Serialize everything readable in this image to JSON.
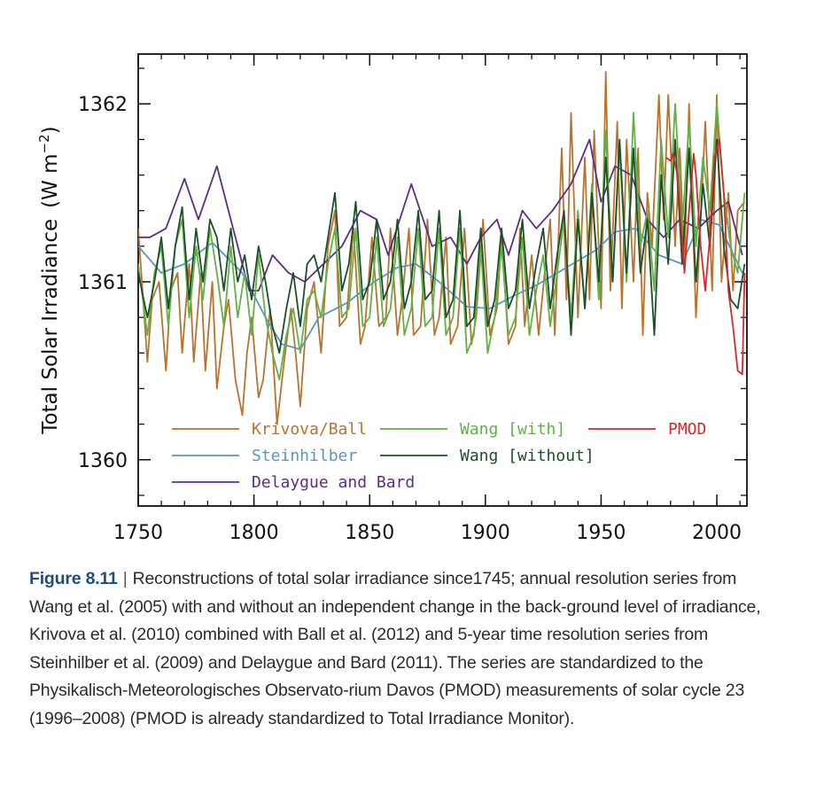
{
  "chart_data": {
    "type": "line",
    "xlabel": "",
    "ylabel": "Total Solar Irradiance",
    "ylabel_unit_base": "(W m",
    "ylabel_unit_exp": "−2",
    "ylabel_unit_close": ")",
    "xlim": [
      1750,
      2013
    ],
    "ylim": [
      1359.74,
      1362.28
    ],
    "x_ticks": [
      "1750",
      "1800",
      "1850",
      "1900",
      "1950",
      "2000"
    ],
    "y_ticks": [
      "1360",
      "1361",
      "1362"
    ],
    "grid": false,
    "legend_position": "bottom-left inside plot",
    "series": [
      {
        "name": "Krivova/Ball",
        "color": "#b8732f",
        "x": [
          1750,
          1754,
          1756,
          1759,
          1762,
          1764,
          1767,
          1769,
          1772,
          1774,
          1777,
          1779,
          1782,
          1784,
          1787,
          1789,
          1792,
          1795,
          1797,
          1799,
          1802,
          1804,
          1807,
          1810,
          1813,
          1816,
          1818,
          1820,
          1823,
          1826,
          1829,
          1832,
          1835,
          1837,
          1840,
          1843,
          1846,
          1848,
          1851,
          1854,
          1857,
          1859,
          1862,
          1864,
          1867,
          1869,
          1872,
          1875,
          1878,
          1880,
          1883,
          1885,
          1888,
          1891,
          1894,
          1896,
          1899,
          1902,
          1905,
          1907,
          1910,
          1913,
          1915,
          1917,
          1920,
          1923,
          1926,
          1928,
          1930,
          1933,
          1935,
          1937,
          1940,
          1943,
          1945,
          1947,
          1950,
          1952,
          1954,
          1957,
          1959,
          1961,
          1964,
          1966,
          1968,
          1970,
          1972,
          1975,
          1977,
          1979,
          1982,
          1984,
          1986,
          1988,
          1991,
          1993,
          1995,
          1998,
          2000,
          2002,
          2005,
          2007,
          2009,
          2012
        ],
        "values": [
          1361.3,
          1360.55,
          1360.9,
          1361.0,
          1360.5,
          1360.95,
          1361.05,
          1360.6,
          1361.1,
          1360.55,
          1361.05,
          1360.5,
          1361.0,
          1360.4,
          1360.75,
          1360.9,
          1360.45,
          1360.25,
          1360.6,
          1360.8,
          1360.35,
          1360.45,
          1360.85,
          1360.2,
          1360.55,
          1360.85,
          1360.6,
          1360.3,
          1360.85,
          1361.0,
          1360.6,
          1361.2,
          1361.4,
          1360.75,
          1360.8,
          1361.3,
          1360.65,
          1360.75,
          1361.25,
          1360.75,
          1360.8,
          1361.3,
          1360.7,
          1360.9,
          1361.3,
          1360.7,
          1360.75,
          1361.35,
          1360.7,
          1360.8,
          1361.25,
          1360.65,
          1360.75,
          1361.3,
          1360.65,
          1360.8,
          1361.35,
          1360.7,
          1360.85,
          1361.25,
          1360.65,
          1360.75,
          1361.3,
          1360.75,
          1361.15,
          1360.7,
          1361.1,
          1361.35,
          1360.7,
          1361.75,
          1360.9,
          1361.95,
          1360.8,
          1361.7,
          1360.9,
          1361.85,
          1360.85,
          1362.18,
          1360.95,
          1361.9,
          1360.85,
          1361.8,
          1361.0,
          1361.75,
          1360.7,
          1361.5,
          1361.2,
          1362.05,
          1361.35,
          1362.05,
          1361.2,
          1361.75,
          1361.1,
          1362.0,
          1360.8,
          1361.35,
          1361.9,
          1360.95,
          1362.05,
          1361.0,
          1361.5,
          1360.95,
          1361.4,
          1361.45
        ]
      },
      {
        "name": "Steinhilber",
        "color": "#5a95c3",
        "x": [
          1750,
          1760,
          1770,
          1782,
          1795,
          1805,
          1812,
          1820,
          1828,
          1840,
          1852,
          1862,
          1870,
          1880,
          1892,
          1902,
          1912,
          1922,
          1935,
          1948,
          1956,
          1965,
          1975,
          1985,
          1993,
          2001,
          2011
        ],
        "values": [
          1361.2,
          1361.05,
          1361.1,
          1361.22,
          1361.05,
          1360.8,
          1360.65,
          1360.62,
          1360.8,
          1360.88,
          1361.0,
          1361.08,
          1361.1,
          1361.0,
          1360.86,
          1360.85,
          1360.92,
          1360.98,
          1361.08,
          1361.18,
          1361.28,
          1361.3,
          1361.15,
          1361.1,
          1361.35,
          1361.32,
          1361.05
        ]
      },
      {
        "name": "Delaygue and Bard",
        "color": "#5c2d84",
        "x": [
          1750,
          1755,
          1762,
          1770,
          1776,
          1784,
          1791,
          1795,
          1798,
          1802,
          1808,
          1815,
          1822,
          1830,
          1838,
          1846,
          1853,
          1858,
          1868,
          1877,
          1885,
          1892,
          1898,
          1905,
          1910,
          1916,
          1922,
          1929,
          1937,
          1945,
          1950,
          1956,
          1963,
          1970,
          1977,
          1984,
          1992,
          2000,
          2005,
          2011
        ],
        "values": [
          1361.25,
          1361.25,
          1361.3,
          1361.58,
          1361.35,
          1361.65,
          1361.3,
          1361.1,
          1360.95,
          1360.95,
          1361.15,
          1361.05,
          1361.0,
          1361.1,
          1361.2,
          1361.4,
          1361.35,
          1361.15,
          1361.55,
          1361.2,
          1361.25,
          1361.1,
          1361.25,
          1361.35,
          1361.15,
          1361.4,
          1361.3,
          1361.4,
          1361.55,
          1361.8,
          1361.45,
          1361.65,
          1361.6,
          1361.35,
          1361.25,
          1361.35,
          1361.3,
          1361.4,
          1361.45,
          1361.15
        ]
      },
      {
        "name": "Wang [with]",
        "color": "#62b145",
        "x": [
          1750,
          1754,
          1757,
          1760,
          1763,
          1766,
          1769,
          1772,
          1775,
          1778,
          1781,
          1784,
          1787,
          1790,
          1793,
          1796,
          1799,
          1802,
          1805,
          1808,
          1811,
          1814,
          1817,
          1820,
          1823,
          1826,
          1829,
          1832,
          1835,
          1838,
          1841,
          1844,
          1847,
          1850,
          1853,
          1856,
          1859,
          1862,
          1865,
          1868,
          1871,
          1874,
          1877,
          1880,
          1883,
          1886,
          1889,
          1892,
          1895,
          1898,
          1901,
          1904,
          1907,
          1910,
          1913,
          1916,
          1919,
          1922,
          1925,
          1928,
          1931,
          1934,
          1937,
          1940,
          1943,
          1946,
          1949,
          1952,
          1955,
          1958,
          1961,
          1964,
          1967,
          1970,
          1973,
          1976,
          1979,
          1982,
          1985,
          1988,
          1991,
          1994,
          1997,
          2000,
          2003,
          2006,
          2009,
          2012
        ],
        "values": [
          1361.1,
          1360.7,
          1361.05,
          1361.2,
          1360.75,
          1361.2,
          1361.35,
          1360.8,
          1361.2,
          1360.9,
          1361.3,
          1361.05,
          1360.75,
          1361.2,
          1360.8,
          1361.05,
          1360.7,
          1361.15,
          1360.8,
          1360.6,
          1360.45,
          1360.7,
          1360.85,
          1360.6,
          1360.9,
          1360.95,
          1360.8,
          1361.1,
          1361.3,
          1360.8,
          1360.85,
          1361.3,
          1360.75,
          1360.8,
          1361.25,
          1360.75,
          1360.85,
          1361.25,
          1360.7,
          1360.85,
          1361.3,
          1360.75,
          1360.8,
          1361.3,
          1360.7,
          1360.8,
          1361.3,
          1360.6,
          1360.7,
          1361.2,
          1360.6,
          1360.8,
          1361.2,
          1360.7,
          1360.8,
          1361.25,
          1360.7,
          1360.95,
          1361.15,
          1360.75,
          1361.05,
          1361.35,
          1360.8,
          1361.4,
          1360.85,
          1361.55,
          1360.9,
          1361.85,
          1361.0,
          1361.75,
          1361.0,
          1361.95,
          1361.2,
          1361.4,
          1360.95,
          1361.8,
          1361.25,
          1362.0,
          1361.3,
          1361.9,
          1361.2,
          1361.7,
          1361.4,
          1362.0,
          1361.5,
          1361.2,
          1361.05,
          1361.5
        ]
      },
      {
        "name": "Wang [without]",
        "color": "#1c4f2a",
        "x": [
          1750,
          1754,
          1757,
          1760,
          1763,
          1766,
          1769,
          1772,
          1775,
          1778,
          1781,
          1784,
          1787,
          1790,
          1793,
          1796,
          1799,
          1802,
          1805,
          1808,
          1811,
          1814,
          1817,
          1820,
          1823,
          1826,
          1829,
          1832,
          1835,
          1838,
          1841,
          1844,
          1847,
          1850,
          1853,
          1856,
          1859,
          1862,
          1865,
          1868,
          1871,
          1874,
          1877,
          1880,
          1883,
          1886,
          1889,
          1892,
          1895,
          1898,
          1901,
          1904,
          1907,
          1910,
          1913,
          1916,
          1919,
          1922,
          1925,
          1928,
          1931,
          1934,
          1937,
          1940,
          1943,
          1946,
          1949,
          1952,
          1955,
          1958,
          1961,
          1964,
          1967,
          1970,
          1973,
          1976,
          1979,
          1982,
          1985,
          1988,
          1991,
          1994,
          1997,
          2000,
          2003,
          2006,
          2009,
          2012
        ],
        "values": [
          1361.05,
          1360.8,
          1361.0,
          1361.25,
          1360.85,
          1361.2,
          1361.42,
          1360.9,
          1361.3,
          1361.0,
          1361.35,
          1361.25,
          1360.95,
          1361.3,
          1361.0,
          1361.15,
          1360.9,
          1361.2,
          1361.0,
          1360.75,
          1360.6,
          1360.85,
          1361.05,
          1360.75,
          1361.1,
          1361.15,
          1361.0,
          1361.25,
          1361.5,
          1360.95,
          1361.1,
          1361.45,
          1360.9,
          1361.0,
          1361.35,
          1360.9,
          1361.0,
          1361.35,
          1360.85,
          1361.0,
          1361.4,
          1360.9,
          1360.95,
          1361.4,
          1360.8,
          1360.9,
          1361.4,
          1360.75,
          1360.8,
          1361.3,
          1360.75,
          1360.9,
          1361.3,
          1360.85,
          1360.95,
          1361.35,
          1360.85,
          1361.1,
          1361.3,
          1360.85,
          1361.15,
          1361.4,
          1360.7,
          1361.35,
          1360.85,
          1361.5,
          1361.0,
          1361.7,
          1361.0,
          1361.8,
          1361.05,
          1361.75,
          1361.05,
          1361.35,
          1360.7,
          1361.6,
          1361.1,
          1361.8,
          1361.1,
          1361.75,
          1361.0,
          1361.55,
          1361.2,
          1361.8,
          1361.2,
          1360.9,
          1360.85,
          1361.1
        ]
      },
      {
        "name": "PMOD",
        "color": "#d6292a",
        "x": [
          1978,
          1980,
          1981,
          1983,
          1986,
          1988,
          1990,
          1991,
          1993,
          1995,
          1997,
          1999,
          2001,
          2003,
          2005,
          2007,
          2009,
          2011,
          2012
        ],
        "values": [
          1361.7,
          1361.68,
          1361.72,
          1361.6,
          1361.05,
          1361.4,
          1361.72,
          1361.6,
          1361.2,
          1360.95,
          1361.25,
          1361.7,
          1361.8,
          1361.5,
          1360.95,
          1360.75,
          1360.5,
          1360.48,
          1361.05
        ]
      }
    ]
  },
  "caption": {
    "label": "Figure 8.11",
    "separator": "|",
    "text": "Reconstructions of total solar irradiance since1745; annual resolution series from Wang et al. (2005) with and without an independent change in the back-ground level of irradiance, Krivova et al. (2010) combined with Ball et al. (2012) and 5-year time resolution series from Steinhilber et al. (2009) and Delaygue and Bard (2011). The series are standardized to the Physikalisch-Meteorologisches Observato-rium Davos (PMOD) measurements of solar cycle 23 (1996–2008) (PMOD is already standardized to Total Irradiance Monitor)."
  }
}
